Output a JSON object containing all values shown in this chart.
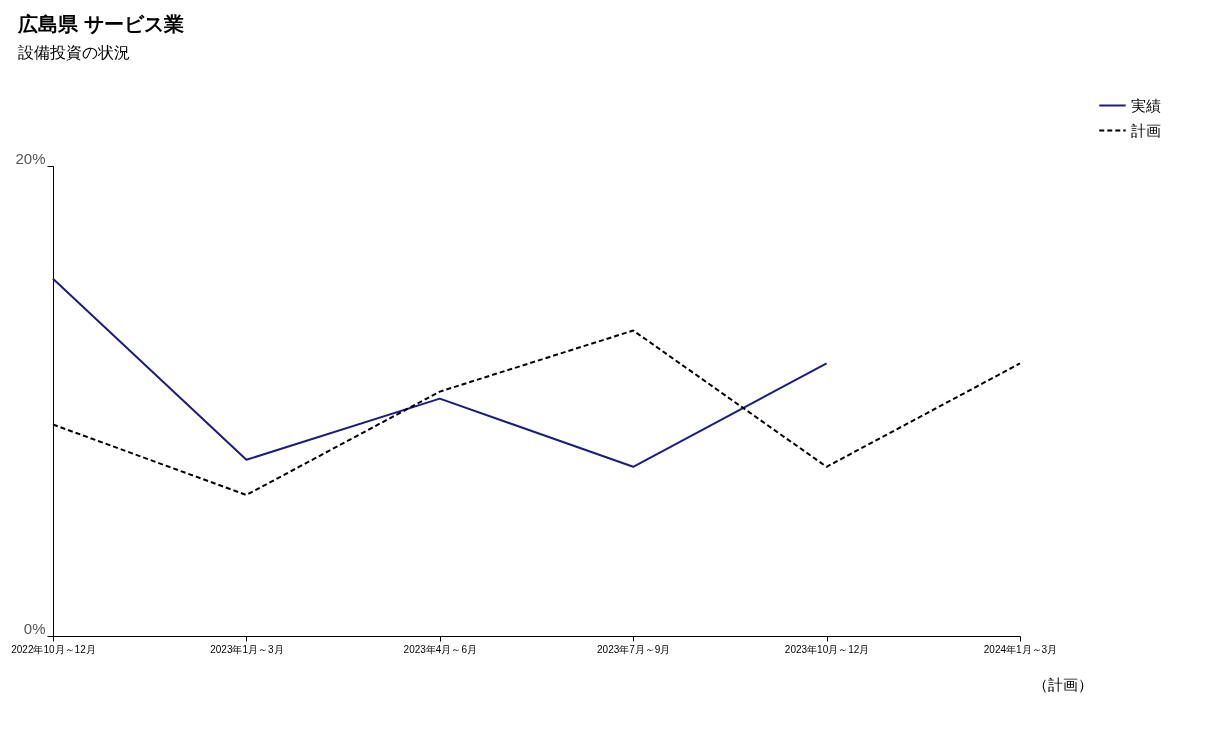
{
  "chart_data": {
    "type": "line",
    "title": "広島県 サービス業",
    "subtitle": "設備投資の状況",
    "categories": [
      "2022年10月～12月",
      "2023年1月～3月",
      "2023年4月～6月",
      "2023年7月～9月",
      "2023年10月～12月",
      "2024年1月～3月"
    ],
    "series": [
      {
        "name": "実績",
        "color": "#1c1c80",
        "line_style": "solid",
        "values": [
          15.2,
          7.5,
          10.1,
          7.2,
          11.6,
          null
        ]
      },
      {
        "name": "計画",
        "color": "#000000",
        "line_style": "dashed",
        "values": [
          9.0,
          6.0,
          10.4,
          13.0,
          7.2,
          11.6
        ]
      }
    ],
    "ylim": [
      0,
      20
    ],
    "yticks": [
      {
        "value": 0,
        "label": "0%"
      },
      {
        "value": 20,
        "label": "20%"
      }
    ],
    "grid": false,
    "legend": "top right",
    "marker": "none",
    "annotations": [
      "（計画）"
    ]
  }
}
